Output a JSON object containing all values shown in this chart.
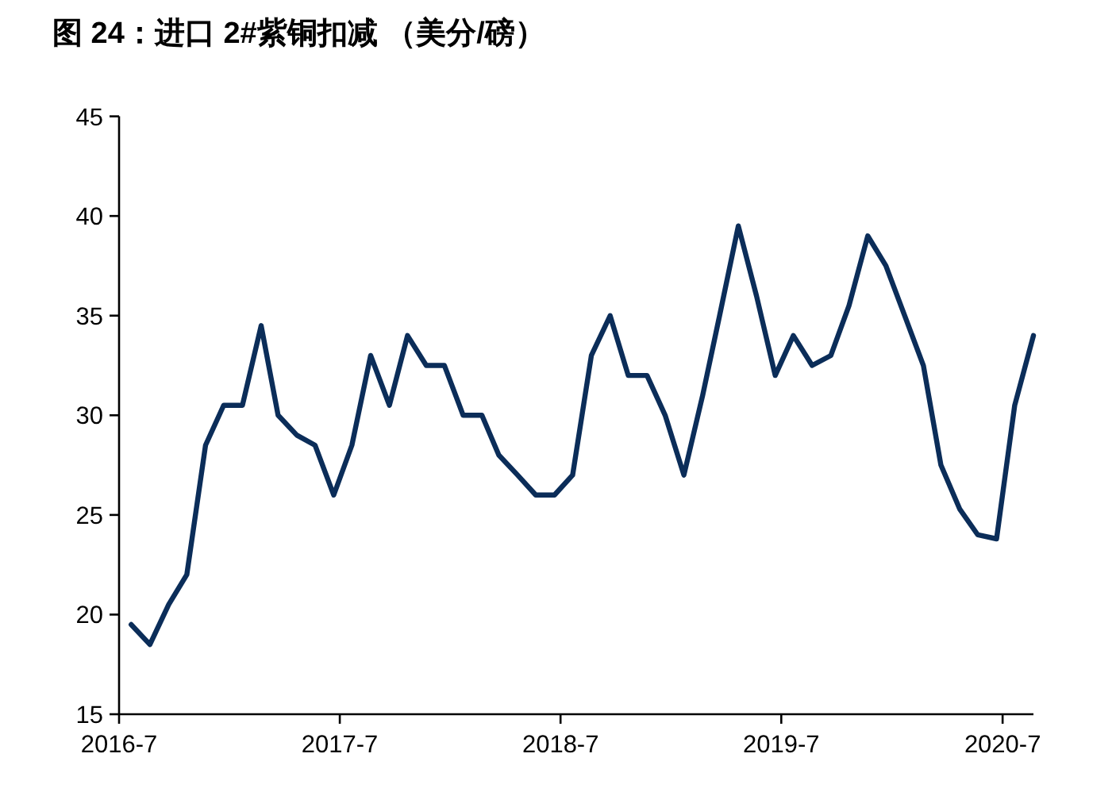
{
  "chart_data": {
    "type": "line",
    "title": "图 24：进口 2#紫铜扣减 （美分/磅）",
    "x": [
      "2016-07-21",
      "2016-08-21",
      "2016-09-21",
      "2016-10-21",
      "2016-11-21",
      "2016-12-21",
      "2017-01-21",
      "2017-02-21",
      "2017-03-21",
      "2017-04-21",
      "2017-05-21",
      "2017-06-21",
      "2017-07-21",
      "2017-08-21",
      "2017-09-21",
      "2017-10-21",
      "2017-11-21",
      "2017-12-21",
      "2018-01-21",
      "2018-02-21",
      "2018-03-21",
      "2018-04-21",
      "2018-05-21",
      "2018-06-21",
      "2018-07-21",
      "2018-08-21",
      "2018-09-21",
      "2018-10-21",
      "2018-11-21",
      "2018-12-21",
      "2019-01-21",
      "2019-02-21",
      "2019-03-21",
      "2019-04-21",
      "2019-05-21",
      "2019-06-21",
      "2019-07-21",
      "2019-08-21",
      "2019-09-21",
      "2019-10-21",
      "2019-11-21",
      "2019-12-21",
      "2020-01-21",
      "2020-02-21",
      "2020-03-21",
      "2020-04-21",
      "2020-05-21",
      "2020-06-21",
      "2020-07-21",
      "2020-08-21"
    ],
    "series": [
      {
        "color": "#0b2d59",
        "values": [
          19.5,
          18.5,
          20.5,
          22,
          28.5,
          30.5,
          30.5,
          34.5,
          30,
          29,
          28.5,
          26,
          28.5,
          33,
          30.5,
          34,
          32.5,
          32.5,
          30,
          30,
          28,
          27,
          26,
          26,
          27,
          33,
          35,
          32,
          32,
          30,
          27,
          31,
          35,
          39.5,
          36,
          32,
          34,
          32.5,
          33,
          35.5,
          39,
          37.5,
          35,
          32.5,
          27.5,
          25.3,
          24,
          23.8,
          30.5,
          34
        ]
      }
    ],
    "xlim": [
      "2016-07-01",
      "2020-08-21"
    ],
    "xticks": [
      {
        "value": "2016-07-01",
        "label": "2016-7"
      },
      {
        "value": "2017-07-01",
        "label": "2017-7"
      },
      {
        "value": "2018-07-01",
        "label": "2018-7"
      },
      {
        "value": "2019-07-01",
        "label": "2019-7"
      },
      {
        "value": "2020-07-01",
        "label": "2020-7"
      }
    ],
    "ylim": [
      15,
      45
    ],
    "yticks": [
      15,
      20,
      25,
      30,
      35,
      40,
      45
    ],
    "grid": false,
    "marker": "none",
    "line_style": "solid"
  }
}
